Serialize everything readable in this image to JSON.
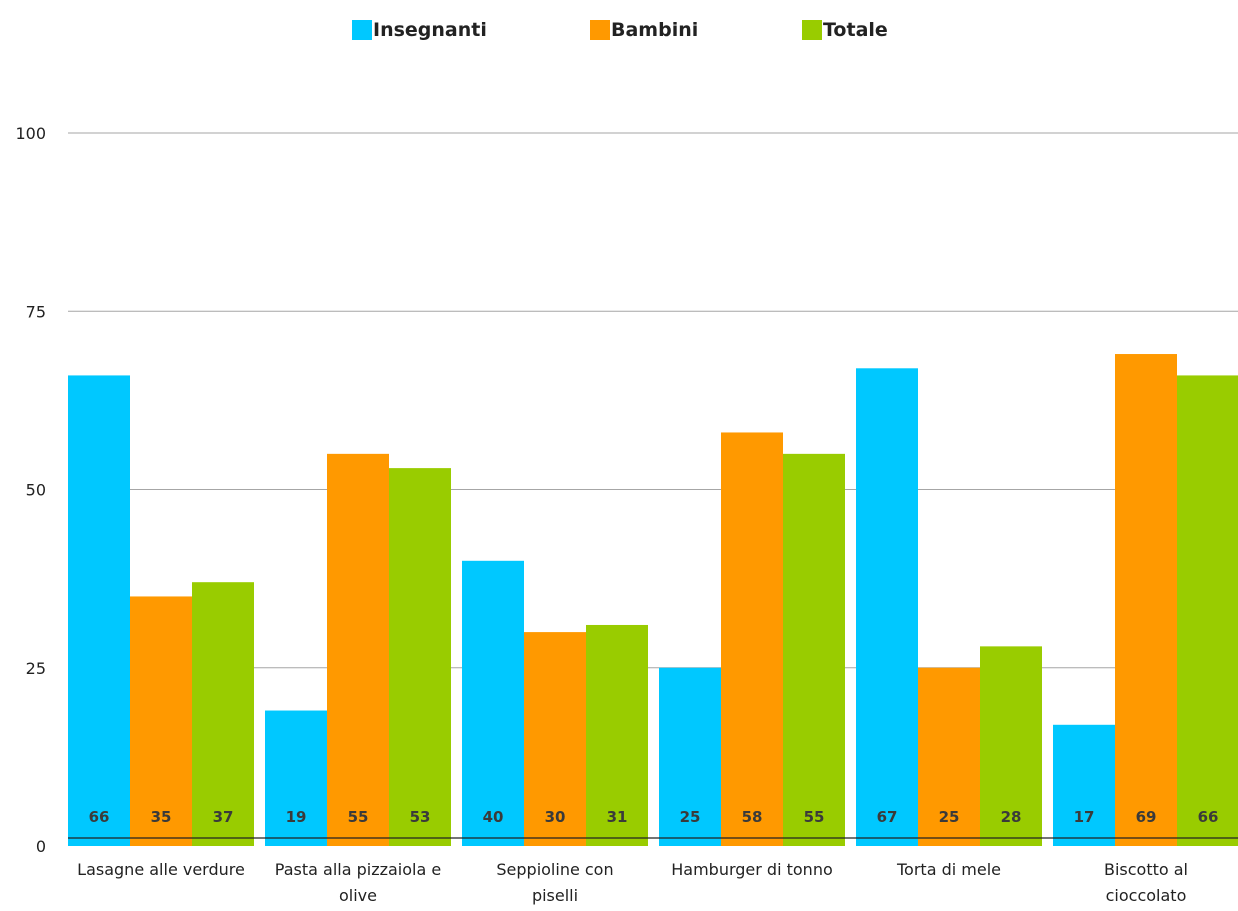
{
  "chart_data": {
    "type": "bar",
    "categories": [
      [
        "Lasagne alle verdure"
      ],
      [
        "Pasta alla pizzaiola e",
        "olive"
      ],
      [
        "Seppioline con",
        "piselli"
      ],
      [
        "Hamburger di tonno"
      ],
      [
        "Torta di mele"
      ],
      [
        "Biscotto al",
        "cioccolato"
      ]
    ],
    "series": [
      {
        "name": "Insegnanti",
        "color": "#00c8ff",
        "values": [
          66,
          19,
          40,
          25,
          67,
          17
        ]
      },
      {
        "name": "Bambini",
        "color": "#ff9900",
        "values": [
          35,
          55,
          30,
          58,
          25,
          69
        ]
      },
      {
        "name": "Totale",
        "color": "#99cc00",
        "values": [
          37,
          53,
          31,
          55,
          28,
          66
        ]
      }
    ],
    "ylim": [
      0,
      100
    ],
    "yticks": [
      0,
      25,
      50,
      75,
      100
    ],
    "grid": true,
    "legend_position": "top-center",
    "title": "",
    "xlabel": "",
    "ylabel": ""
  }
}
